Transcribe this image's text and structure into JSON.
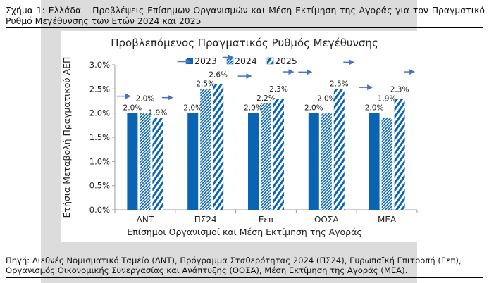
{
  "figure_caption": "Σχήμα 1: Ελλάδα – Προβλέψεις Επίσημων Οργανισμών και Μέση Εκτίμηση της Αγοράς για τον Πραγματικό Ρυθμό Μεγέθυνσης των Ετών 2024 και 2025",
  "source_note": "Πηγή: Διεθνές Νομισματικό Ταμείο (ΔΝΤ), Πρόγραμμα Σταθερότητας 2024 (ΠΣ24), Ευρωπαϊκή Επιτροπή (Εεπ), Οργανισμός Οικονομικής Συνεργασίας και Ανάπτυξης (ΟΟΣΑ), Μέση Εκτίμηση της Αγοράς (ΜΕΑ).",
  "chart_data": {
    "type": "bar",
    "title": "Προβλεπόμενος Πραγματικός Ρυθμός Μεγέθυνσης",
    "xlabel": "Επίσημοι Οργανισμοί και Μέση Εκτίμηση της Αγοράς",
    "ylabel": "Ετήσια Μεταβολή Πραγματικού ΑΕΠ",
    "ylim": [
      0,
      3.0
    ],
    "yticks": [
      "0.0%",
      "0.5%",
      "1.0%",
      "1.5%",
      "2.0%",
      "2.5%",
      "3.0%"
    ],
    "categories": [
      "ΔΝΤ",
      "ΠΣ24",
      "Εεπ",
      "ΟΟΣΑ",
      "ΜΕΑ"
    ],
    "legend_position": "top",
    "grid": false,
    "series": [
      {
        "name": "2023",
        "values": [
          2.0,
          2.0,
          2.0,
          2.0,
          2.0
        ],
        "labels": [
          "2.0%",
          "2.0%",
          "2.0%",
          "2.0%",
          "2.0%"
        ],
        "fill": "solid"
      },
      {
        "name": "2024",
        "values": [
          2.0,
          2.5,
          2.2,
          2.0,
          1.9
        ],
        "labels": [
          "2.0%",
          "2.5%",
          "2.2%",
          "2.0%",
          "1.9%"
        ],
        "fill": "dense-hatch"
      },
      {
        "name": "2025",
        "values": [
          1.9,
          2.6,
          2.3,
          2.5,
          2.3
        ],
        "labels": [
          "1.9%",
          "2.6%",
          "2.3%",
          "2.5%",
          "2.3%"
        ],
        "fill": "wide-hatch"
      }
    ],
    "colors": {
      "bar": "#0a64b4",
      "arrow": "#4a72c4",
      "axis": "#888888"
    }
  }
}
